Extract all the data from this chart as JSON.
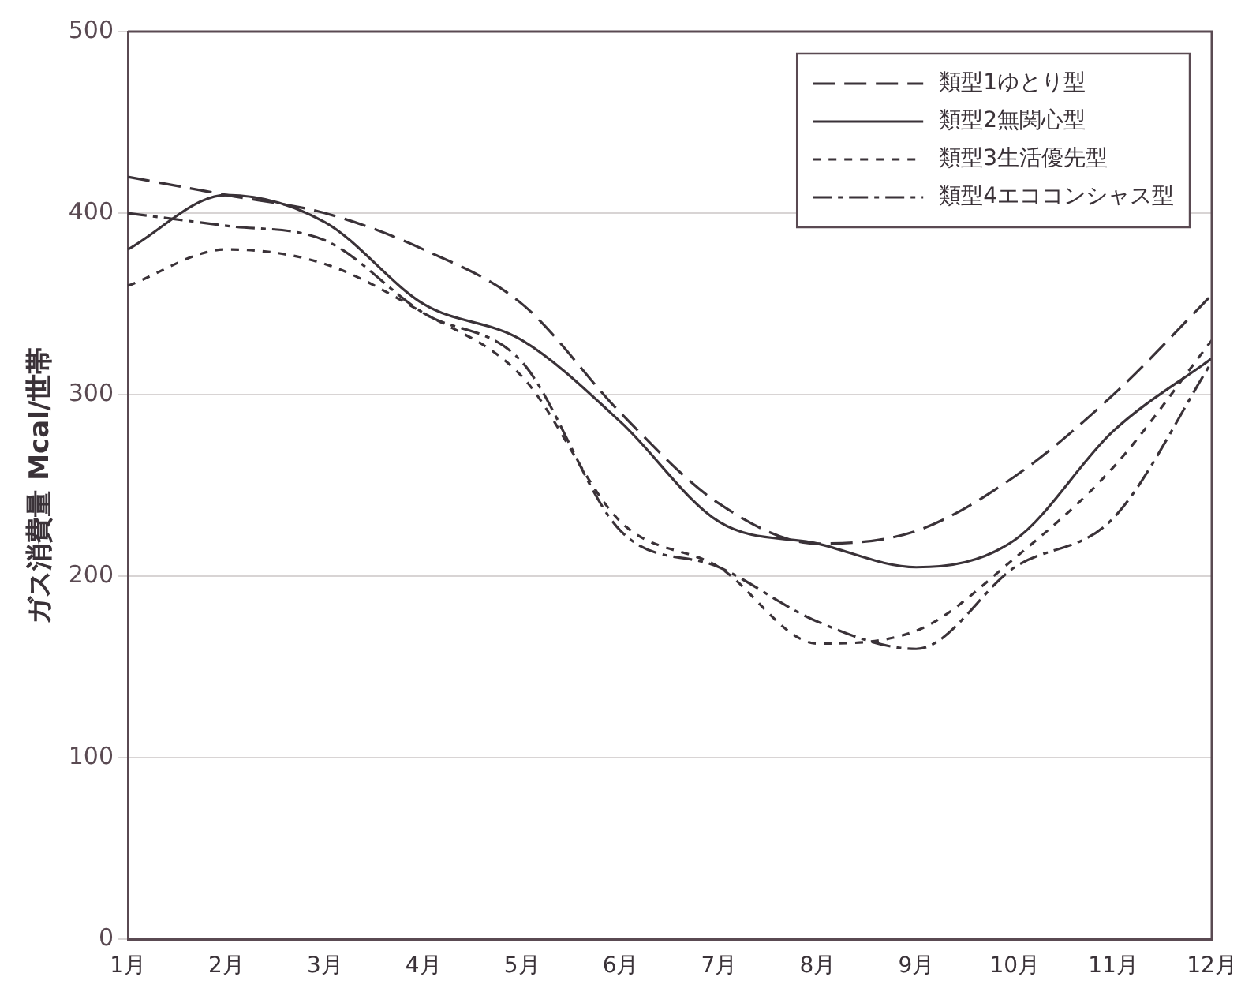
{
  "chart_data": {
    "type": "line",
    "ylabel": "ガス消費量 Mcal/世帯",
    "categories": [
      "1月",
      "2月",
      "3月",
      "4月",
      "5月",
      "6月",
      "7月",
      "8月",
      "9月",
      "10月",
      "11月",
      "12月"
    ],
    "series": [
      {
        "name": "類型1ゆとり型",
        "color": "#3a3238",
        "line_style": "dashed",
        "values": [
          420,
          410,
          400,
          380,
          350,
          290,
          240,
          218,
          225,
          255,
          300,
          355
        ]
      },
      {
        "name": "類型2無関心型",
        "color": "#3a3238",
        "line_style": "solid",
        "values": [
          380,
          410,
          395,
          350,
          330,
          285,
          230,
          218,
          205,
          220,
          280,
          320
        ]
      },
      {
        "name": "類型3生活優先型",
        "color": "#3a3238",
        "line_style": "dotted",
        "values": [
          360,
          380,
          372,
          345,
          310,
          230,
          205,
          163,
          170,
          210,
          260,
          330
        ]
      },
      {
        "name": "類型4エココンシャス型",
        "color": "#3a3238",
        "line_style": "dashdot",
        "values": [
          400,
          393,
          385,
          345,
          318,
          225,
          205,
          175,
          160,
          205,
          232,
          318
        ]
      }
    ],
    "ylim": [
      0,
      500
    ],
    "yticks": [
      0,
      100,
      200,
      300,
      400,
      500
    ],
    "grid": "y",
    "legend": "top right",
    "marker": "none"
  }
}
